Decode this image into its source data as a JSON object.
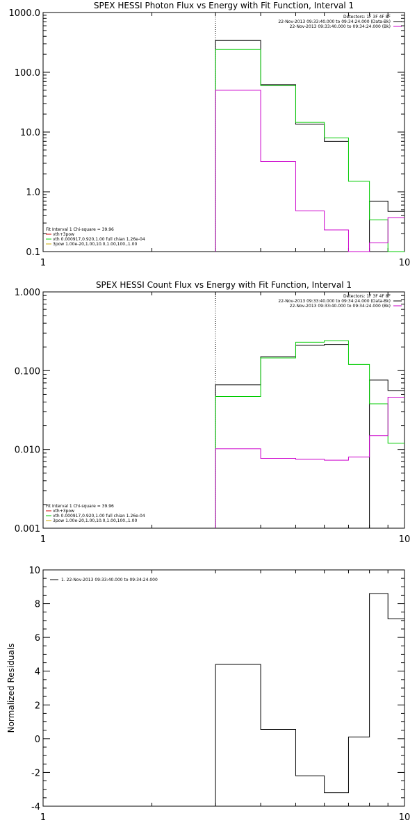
{
  "chart_data": [
    {
      "type": "line",
      "title": "SPEX HESSI Photon Flux vs Energy with Fit Function, Interval 1",
      "xscale": "log",
      "yscale": "log",
      "xlim": [
        1,
        10
      ],
      "ylim": [
        0.1,
        1000
      ],
      "x_ticks": [
        "1",
        "10"
      ],
      "y_ticks": [
        "0.1",
        "1.0",
        "10.0",
        "100.0",
        "1000.0"
      ],
      "y_tick_values": [
        0.1,
        1,
        10,
        100,
        1000
      ],
      "marker_x": 3.0,
      "legend_tr": [
        "Detectors: 1F 3F 4F 8F",
        "22-Nov-2013 09:33:40.000 to 09:34:24.000 (Data-Bk)",
        "22-Nov-2013 09:33:40.000 to 09:34:24.000 (Bk)"
      ],
      "legend_bl": [
        "Fit Interval 1   Chi-square = 39.96",
        "vth+3pow",
        "vth 0.000917,0.920,1.00  full chian 1.26e-04",
        "3pow 1.00e-20,1.00,10.0,1.00,100.,1.00"
      ],
      "bin_edges": [
        3.0,
        4.0,
        5.0,
        6.0,
        7.0,
        8.0,
        9.0,
        10.0
      ],
      "series": [
        {
          "name": "Data-Bk",
          "color": "#000000",
          "values": [
            340,
            62,
            13.5,
            7.0,
            null,
            0.7,
            0.47
          ]
        },
        {
          "name": "fit",
          "color": "#00cc00",
          "values": [
            240,
            60,
            14.5,
            8.0,
            1.5,
            0.34,
            0.09
          ]
        },
        {
          "name": "Bk",
          "color": "#cc00cc",
          "values": [
            50,
            3.2,
            0.48,
            0.23,
            0.09,
            0.14,
            0.37
          ]
        }
      ]
    },
    {
      "type": "line",
      "title": "SPEX HESSI Count Flux vs Energy with Fit Function, Interval 1",
      "xscale": "log",
      "yscale": "log",
      "xlim": [
        1,
        10
      ],
      "ylim": [
        0.001,
        1
      ],
      "x_ticks": [
        "1",
        "10"
      ],
      "y_ticks": [
        "0.001",
        "0.010",
        "0.100",
        "1.000"
      ],
      "y_tick_values": [
        0.001,
        0.01,
        0.1,
        1
      ],
      "marker_x": 3.0,
      "legend_tr": [
        "Detectors: 1F 3F 4F 8F",
        "22-Nov-2013 09:33:40.000 to 09:34:24.000 (Data-Bk)",
        "22-Nov-2013 09:33:40.000 to 09:34:24.000 (Bk)"
      ],
      "legend_bl": [
        "Fit Interval 1   Chi-square = 39.96",
        "vth+3pow",
        "vth 0.000917,0.920,1.00  full chian 1.26e-04",
        "3pow 1.00e-20,1.00,10.0,1.00,100.,1.00"
      ],
      "bin_edges": [
        3.0,
        4.0,
        5.0,
        6.0,
        7.0,
        8.0,
        9.0,
        10.0
      ],
      "series": [
        {
          "name": "Data-Bk",
          "color": "#000000",
          "values": [
            0.066,
            0.15,
            0.21,
            0.215,
            null,
            0.076,
            0.056
          ]
        },
        {
          "name": "fit",
          "color": "#00cc00",
          "values": [
            0.047,
            0.145,
            0.23,
            0.24,
            0.12,
            0.038,
            0.012
          ]
        },
        {
          "name": "Bk",
          "color": "#cc00cc",
          "values": [
            0.0102,
            0.0077,
            0.0075,
            0.0073,
            0.008,
            0.015,
            0.046
          ]
        }
      ]
    },
    {
      "type": "line",
      "title": "",
      "xscale": "log",
      "yscale": "linear",
      "xlim": [
        1,
        10
      ],
      "ylim": [
        -4,
        10
      ],
      "ylabel": "Normalized Residuals",
      "x_ticks": [
        "1",
        "10"
      ],
      "y_ticks": [
        "-4",
        "-2",
        "0",
        "2",
        "4",
        "6",
        "8",
        "10"
      ],
      "y_tick_values": [
        -4,
        -2,
        0,
        2,
        4,
        6,
        8,
        10
      ],
      "legend_tl": [
        "1. 22-Nov-2013 09:33:40.000 to 09:34:24.000"
      ],
      "bin_edges": [
        3.0,
        4.0,
        5.0,
        6.0,
        7.0,
        8.0,
        9.0,
        10.0
      ],
      "series": [
        {
          "name": "",
          "color": "#000000",
          "values": [
            4.4,
            0.55,
            -2.2,
            -3.2,
            0.1,
            8.6,
            7.1
          ]
        }
      ]
    }
  ]
}
